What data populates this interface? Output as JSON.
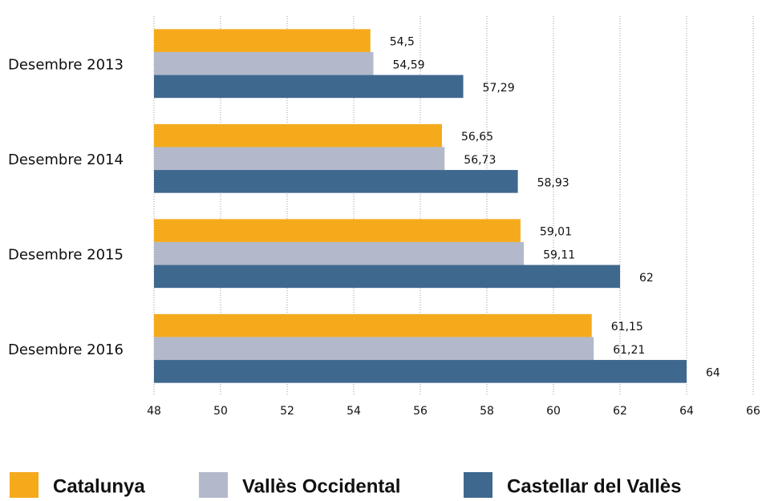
{
  "chart_data": {
    "type": "hbar",
    "categories": [
      "Desembre 2013",
      "Desembre 2014",
      "Desembre 2015",
      "Desembre 2016"
    ],
    "series": [
      {
        "name": "Catalunya",
        "color": "#f5aa1c",
        "values": [
          54.5,
          56.65,
          59.01,
          61.15
        ],
        "value_labels": [
          "54,5",
          "56,65",
          "59,01",
          "61,15"
        ]
      },
      {
        "name": "Vallès Occidental",
        "color": "#b3b9cb",
        "values": [
          54.59,
          56.73,
          59.11,
          61.21
        ],
        "value_labels": [
          "54,59",
          "56,73",
          "59,11",
          "61,21"
        ]
      },
      {
        "name": "Castellar del Vallès",
        "color": "#3f688e",
        "values": [
          57.29,
          58.93,
          62,
          64
        ],
        "value_labels": [
          "57,29",
          "58,93",
          "62",
          "64"
        ]
      }
    ],
    "xlim": [
      48,
      66
    ],
    "xticks": [
      48,
      50,
      52,
      54,
      56,
      58,
      60,
      62,
      64,
      66
    ],
    "grid": true,
    "legend": "bottom"
  }
}
